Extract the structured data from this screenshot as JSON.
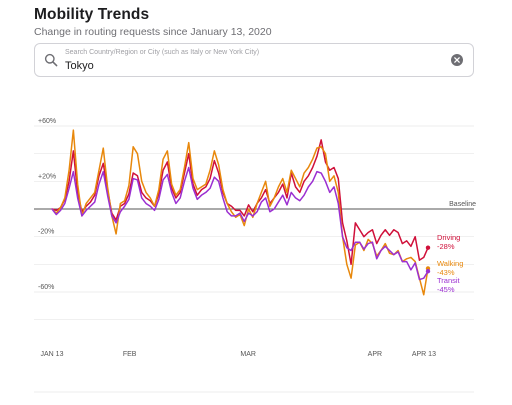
{
  "header": {
    "title": "Mobility Trends",
    "subtitle": "Change in routing requests since January 13, 2020"
  },
  "search": {
    "placeholder": "Search Country/Region or City (such as Italy or New York City)",
    "value": "Tokyo"
  },
  "icons": {
    "search": "search-icon",
    "clear": "clear-icon"
  },
  "chart_data": {
    "type": "line",
    "title": "",
    "xlabel": "",
    "ylabel": "",
    "x_start": "2020-01-13",
    "x_end": "2020-04-14",
    "ylim": [
      -90,
      70
    ],
    "y_ticks": [
      {
        "value": 60,
        "label": "+60%"
      },
      {
        "value": 20,
        "label": "+20%"
      },
      {
        "value": 0,
        "label": "Baseline"
      },
      {
        "value": -20,
        "label": "-20%"
      },
      {
        "value": -60,
        "label": "-60%"
      }
    ],
    "x_ticks": [
      {
        "date": "2020-01-13",
        "label": "JAN 13"
      },
      {
        "date": "2020-02-01",
        "label": "FEB"
      },
      {
        "date": "2020-03-01",
        "label": "MAR"
      },
      {
        "date": "2020-04-01",
        "label": "APR"
      },
      {
        "date": "2020-04-13",
        "label": "APR 13"
      }
    ],
    "grid": true,
    "series": [
      {
        "name": "Driving",
        "color": "#d0103a",
        "last_label": "-28%",
        "values": [
          0,
          -1,
          1,
          7,
          20,
          42,
          12,
          -2,
          2,
          5,
          10,
          24,
          33,
          14,
          -3,
          -8,
          2,
          4,
          11,
          26,
          24,
          12,
          8,
          6,
          2,
          11,
          28,
          34,
          15,
          8,
          12,
          26,
          40,
          18,
          10,
          14,
          16,
          22,
          35,
          26,
          12,
          4,
          2,
          -1,
          -1,
          -5,
          3,
          -2,
          4,
          8,
          14,
          4,
          8,
          12,
          18,
          8,
          26,
          16,
          12,
          20,
          24,
          30,
          38,
          50,
          34,
          28,
          30,
          22,
          -10,
          -23,
          -40,
          -10,
          -15,
          -20,
          -17,
          -15,
          -25,
          -19,
          -15,
          -19,
          -15,
          -17,
          -25,
          -23,
          -27,
          -20,
          -37,
          -35,
          -28
        ]
      },
      {
        "name": "Walking",
        "color": "#e8880c",
        "last_label": "-43%",
        "values": [
          0,
          -3,
          1,
          8,
          28,
          57,
          18,
          -5,
          4,
          8,
          12,
          28,
          44,
          16,
          -5,
          -18,
          4,
          6,
          17,
          45,
          40,
          20,
          12,
          8,
          2,
          14,
          36,
          42,
          18,
          10,
          14,
          30,
          48,
          22,
          14,
          16,
          18,
          28,
          42,
          32,
          14,
          4,
          -2,
          -6,
          -4,
          -12,
          0,
          -6,
          4,
          12,
          20,
          2,
          8,
          16,
          22,
          12,
          28,
          22,
          16,
          26,
          30,
          36,
          44,
          45,
          40,
          20,
          24,
          12,
          -20,
          -40,
          -50,
          -26,
          -24,
          -30,
          -22,
          -25,
          -34,
          -30,
          -25,
          -32,
          -33,
          -30,
          -38,
          -36,
          -35,
          -38,
          -50,
          -62,
          -43
        ]
      },
      {
        "name": "Transit",
        "color": "#9b2fd1",
        "last_label": "-45%",
        "values": [
          0,
          -4,
          -1,
          4,
          15,
          27,
          8,
          -5,
          -1,
          2,
          5,
          18,
          27,
          10,
          -5,
          -10,
          -2,
          2,
          7,
          22,
          21,
          8,
          4,
          2,
          -1,
          7,
          21,
          25,
          12,
          4,
          8,
          20,
          30,
          15,
          7,
          10,
          12,
          15,
          23,
          20,
          8,
          -2,
          -5,
          -5,
          -3,
          -9,
          -3,
          -5,
          -2,
          5,
          8,
          -2,
          0,
          5,
          10,
          3,
          12,
          8,
          6,
          10,
          16,
          20,
          27,
          26,
          20,
          12,
          16,
          4,
          -20,
          -28,
          -30,
          -24,
          -24,
          -29,
          -25,
          -24,
          -36,
          -30,
          -27,
          -30,
          -33,
          -31,
          -38,
          -38,
          -44,
          -39,
          -51,
          -50,
          -45
        ]
      }
    ]
  }
}
